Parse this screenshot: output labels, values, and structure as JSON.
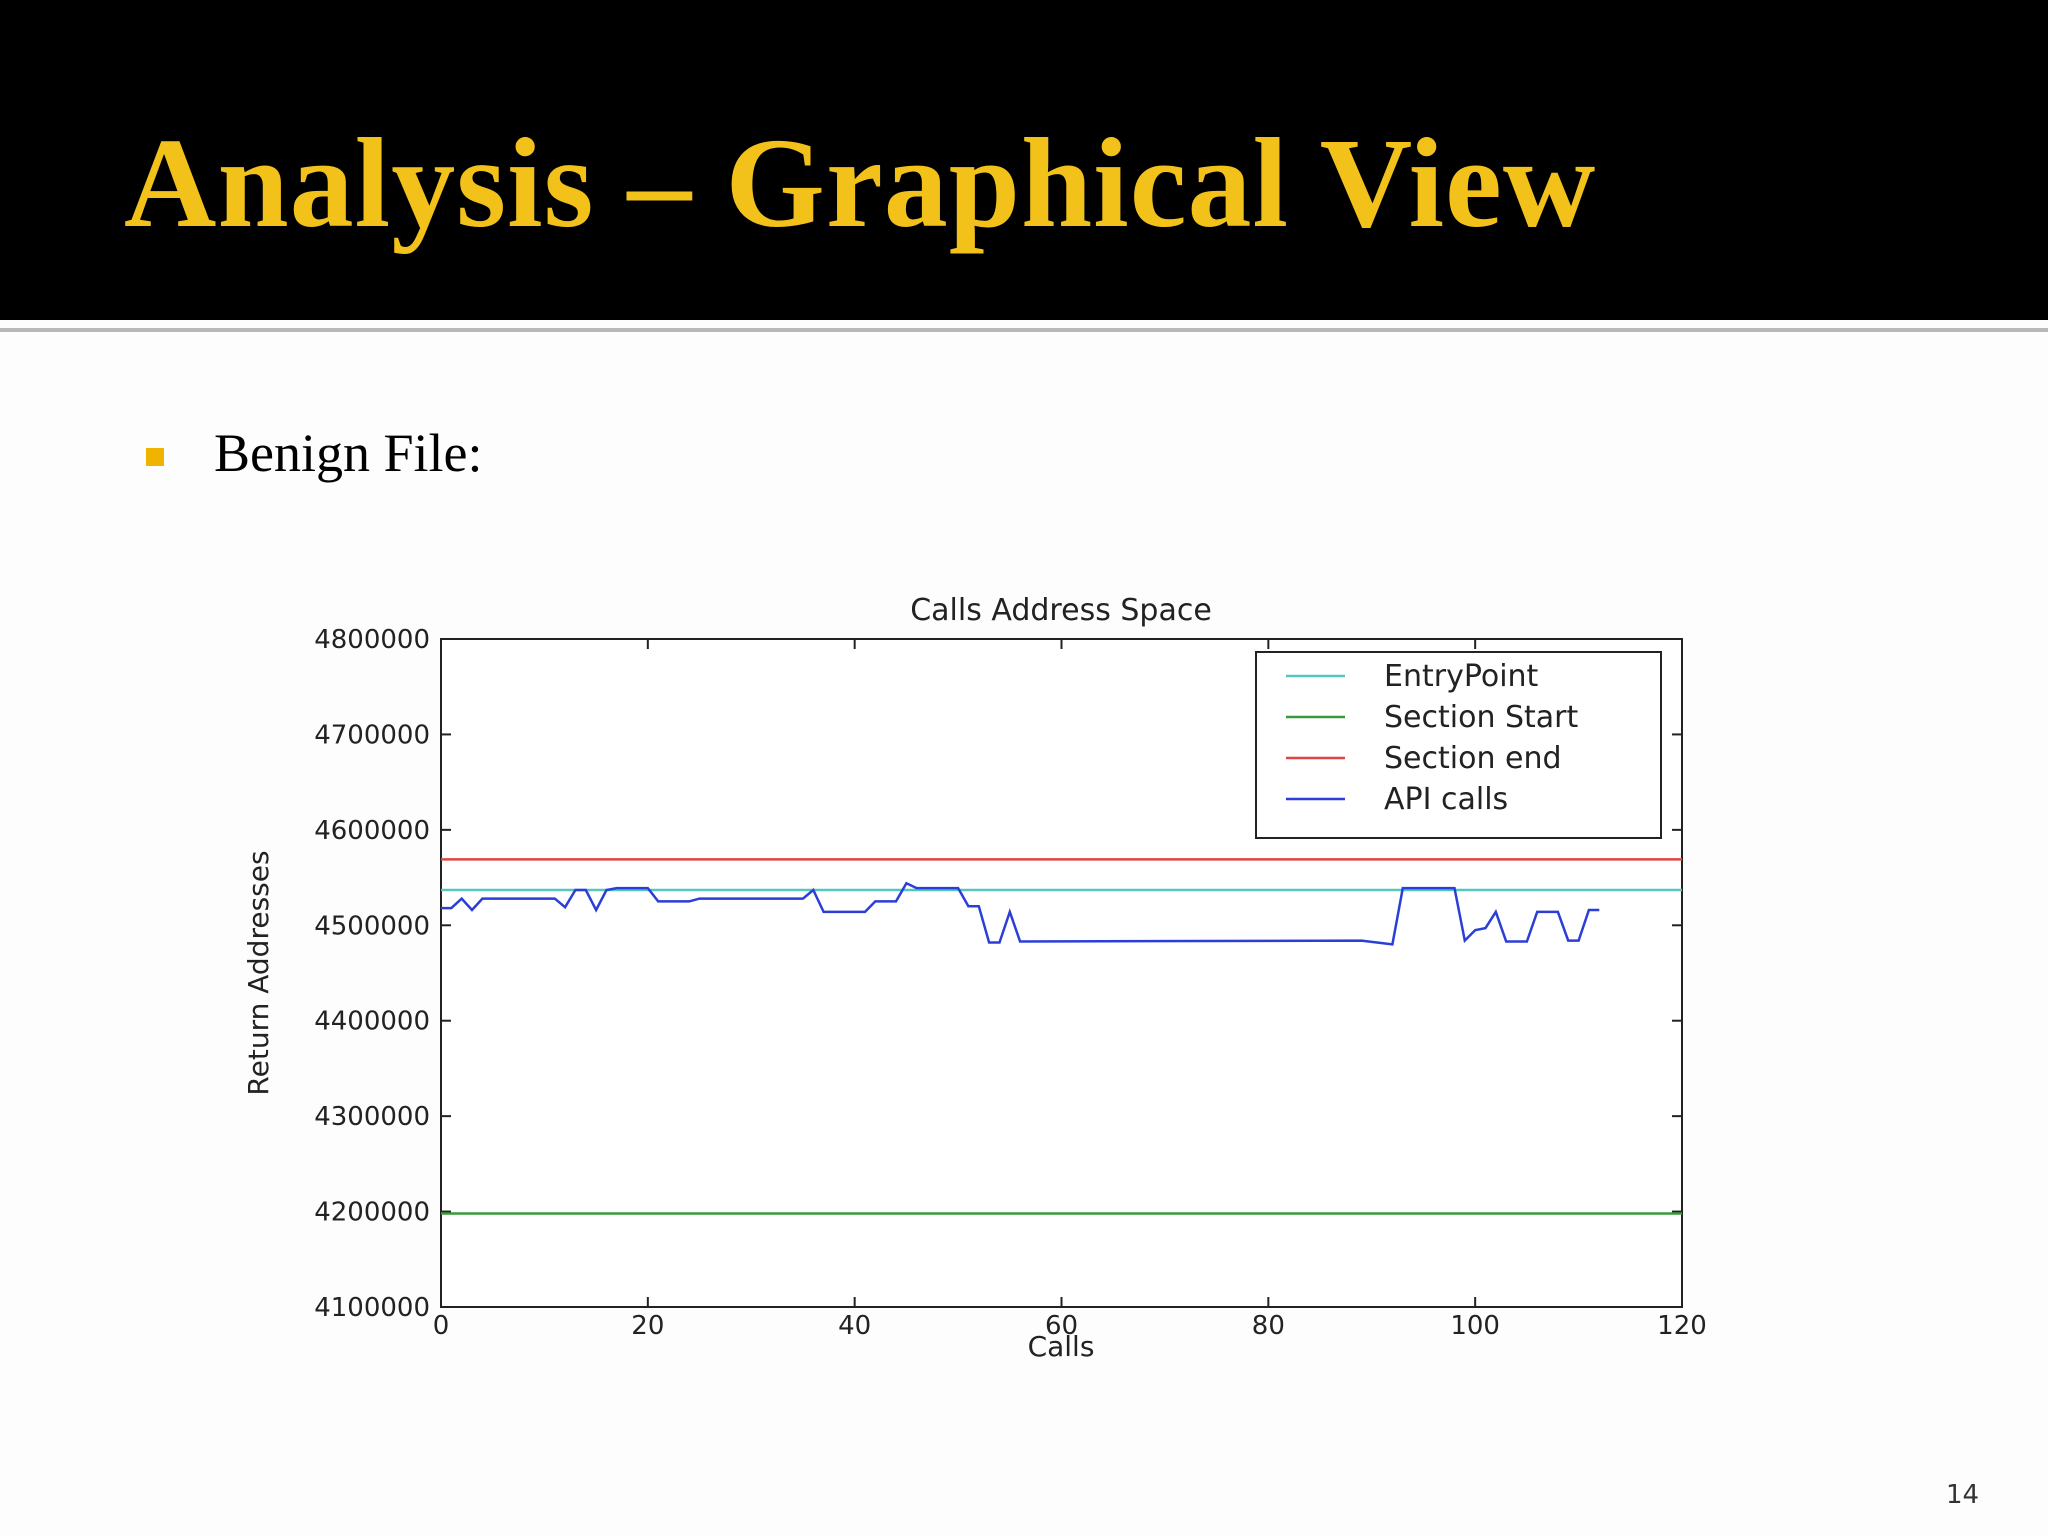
{
  "slide": {
    "title": "Analysis – Graphical View",
    "bullet": "Benign File:",
    "page_number": "14"
  },
  "chart_data": {
    "type": "line",
    "title": "Calls Address Space",
    "x_label": "Calls",
    "y_label": "Return Addresses",
    "xlim": [
      0,
      120
    ],
    "ylim": [
      4100000,
      4800000
    ],
    "xticks": [
      0,
      20,
      40,
      60,
      80,
      100,
      120
    ],
    "yticks": [
      4100000,
      4200000,
      4300000,
      4400000,
      4500000,
      4600000,
      4700000,
      4800000
    ],
    "grid": false,
    "legend": "upper right",
    "series": [
      {
        "name": "EntryPoint",
        "color": "#56c7c0",
        "x": [
          0,
          120
        ],
        "values": [
          4537000,
          4537000
        ]
      },
      {
        "name": "Section Start",
        "color": "#3a9a3a",
        "x": [
          0,
          120
        ],
        "values": [
          4198000,
          4198000
        ]
      },
      {
        "name": "Section end",
        "color": "#e04545",
        "x": [
          0,
          120
        ],
        "values": [
          4569000,
          4569000
        ]
      },
      {
        "name": "API calls",
        "color": "#2b3fd8",
        "x": [
          0,
          1,
          2,
          3,
          4,
          11,
          12,
          13,
          14,
          15,
          16,
          17,
          20,
          21,
          24,
          25,
          35,
          36,
          37,
          41,
          42,
          44,
          45,
          46,
          50,
          51,
          52,
          53,
          54,
          55,
          56,
          89,
          92,
          93,
          98,
          99,
          100,
          101,
          102,
          103,
          105,
          106,
          108,
          109,
          110,
          111,
          112
        ],
        "values": [
          4518000,
          4518000,
          4528000,
          4516000,
          4528000,
          4528000,
          4519000,
          4537000,
          4537000,
          4516000,
          4537000,
          4539000,
          4539000,
          4525000,
          4525000,
          4528000,
          4528000,
          4537000,
          4514000,
          4514000,
          4525000,
          4525000,
          4544000,
          4539000,
          4539000,
          4520000,
          4520000,
          4482000,
          4482000,
          4514000,
          4483000,
          4484000,
          4480000,
          4539000,
          4539000,
          4484000,
          4495000,
          4497000,
          4514000,
          4483000,
          4483000,
          4514000,
          4514000,
          4484000,
          4484000,
          4516000,
          4516000
        ]
      }
    ]
  }
}
